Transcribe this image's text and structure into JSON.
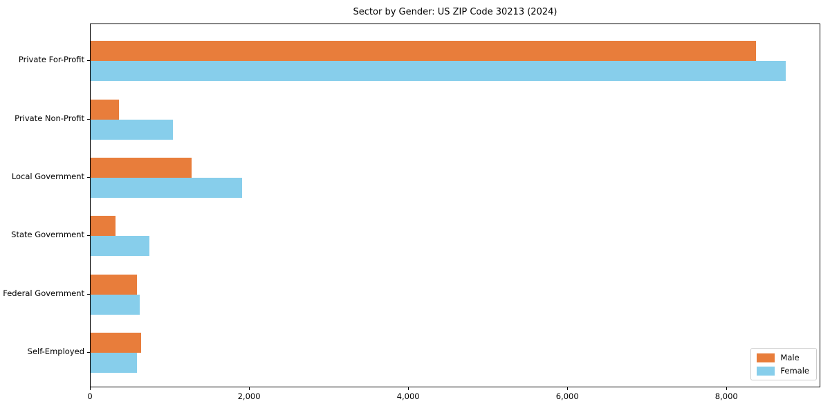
{
  "chart_data": {
    "type": "bar",
    "orientation": "horizontal",
    "title": "Sector by Gender: US ZIP Code 30213 (2024)",
    "categories": [
      "Private For-Profit",
      "Private Non-Profit",
      "Local Government",
      "State Government",
      "Federal Government",
      "Self-Employed"
    ],
    "series": [
      {
        "name": "Male",
        "color": "#e87d3b",
        "values": [
          8360,
          360,
          1270,
          315,
          580,
          635
        ]
      },
      {
        "name": "Female",
        "color": "#87ceeb",
        "values": [
          8740,
          1035,
          1905,
          735,
          620,
          580
        ]
      }
    ],
    "xlabel": "",
    "ylabel": "",
    "xlim": [
      0,
      9180
    ],
    "xticks": [
      0,
      2000,
      4000,
      6000,
      8000
    ],
    "xtick_labels": [
      "0",
      "2,000",
      "4,000",
      "6,000",
      "8,000"
    ],
    "grid": false,
    "legend": {
      "position": "lower right",
      "entries": [
        "Male",
        "Female"
      ]
    },
    "colors": {
      "axis": "#000000",
      "legend_border": "#cccccc",
      "background": "#ffffff"
    }
  }
}
